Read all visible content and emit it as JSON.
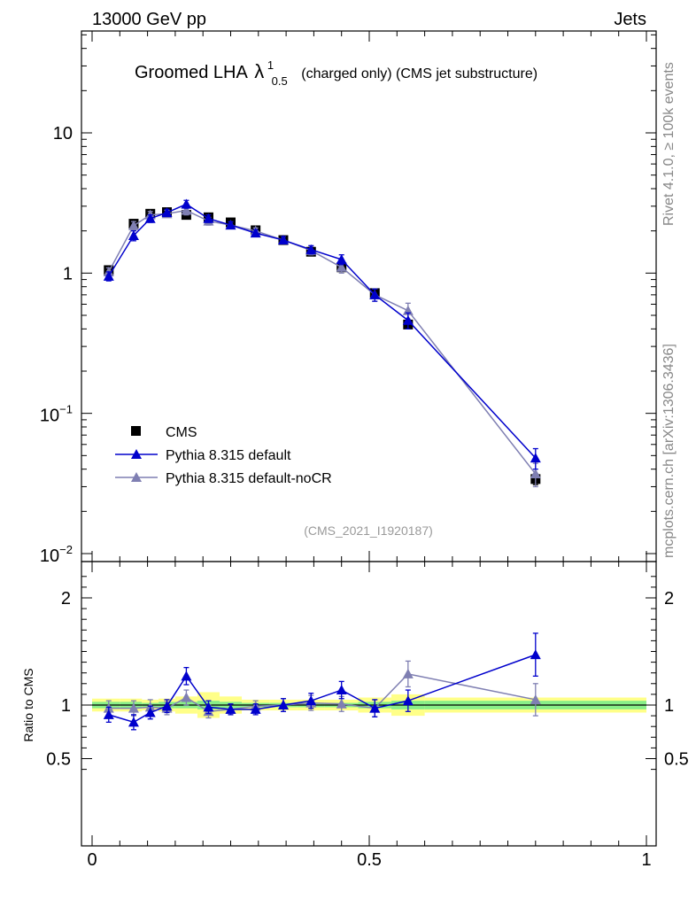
{
  "header": {
    "energy": "13000 GeV pp",
    "category": "Jets"
  },
  "title": {
    "main": "Groomed LHA",
    "lambda": "λ",
    "sup": "1",
    "sub": "0.5",
    "suffix": "(charged only) (CMS jet substructure)"
  },
  "side": {
    "rivet": "Rivet 4.1.0, ≥ 100k events",
    "mcplots": "mcplots.cern.ch [arXiv:1306.3436]"
  },
  "analysis_id": "(CMS_2021_I1920187)",
  "colors": {
    "cms": "#000000",
    "default": "#0000cc",
    "nocr": "#7f7fb2",
    "band_stat": "#88ee88",
    "band_tot": "#ffff88"
  },
  "chart_data": [
    {
      "type": "line",
      "yscale": "log",
      "xlim": [
        0,
        1
      ],
      "ylim": [
        0.01,
        60
      ],
      "yticks": [
        {
          "value": 10,
          "label": "10"
        },
        {
          "value": 1,
          "label": "1"
        },
        {
          "value": 0.1,
          "label": "10",
          "exp": "−1"
        },
        {
          "value": 0.01,
          "label": "10",
          "exp": "−2"
        }
      ],
      "legend": [
        "CMS",
        "Pythia 8.315 default",
        "Pythia 8.315 default-noCR"
      ],
      "series": [
        {
          "name": "CMS",
          "marker": "square",
          "x": [
            0.03,
            0.075,
            0.105,
            0.135,
            0.17,
            0.21,
            0.25,
            0.295,
            0.345,
            0.395,
            0.45,
            0.51,
            0.57,
            0.8
          ],
          "y": [
            1.05,
            2.25,
            2.65,
            2.72,
            2.6,
            2.5,
            2.3,
            2.02,
            1.72,
            1.42,
            1.1,
            0.72,
            0.43,
            0.034
          ],
          "err": [
            0.05,
            0.1,
            0.1,
            0.1,
            0.1,
            0.1,
            0.08,
            0.07,
            0.06,
            0.05,
            0.04,
            0.03,
            0.03,
            0.003
          ]
        },
        {
          "name": "Pythia 8.315 default",
          "marker": "triangle",
          "x": [
            0.03,
            0.075,
            0.105,
            0.135,
            0.17,
            0.21,
            0.25,
            0.295,
            0.345,
            0.395,
            0.45,
            0.51,
            0.57,
            0.8
          ],
          "y": [
            0.95,
            1.85,
            2.45,
            2.7,
            3.1,
            2.45,
            2.2,
            1.93,
            1.72,
            1.47,
            1.25,
            0.7,
            0.46,
            0.048
          ],
          "err": [
            0.07,
            0.15,
            0.15,
            0.15,
            0.2,
            0.15,
            0.12,
            0.1,
            0.1,
            0.1,
            0.1,
            0.07,
            0.06,
            0.008
          ]
        },
        {
          "name": "Pythia 8.315 default-noCR",
          "marker": "triangle",
          "x": [
            0.03,
            0.075,
            0.105,
            0.135,
            0.17,
            0.21,
            0.25,
            0.295,
            0.345,
            0.395,
            0.45,
            0.51,
            0.57,
            0.8
          ],
          "y": [
            1.02,
            2.18,
            2.6,
            2.65,
            2.8,
            2.35,
            2.2,
            2.0,
            1.72,
            1.45,
            1.1,
            0.7,
            0.54,
            0.037
          ],
          "err": [
            0.07,
            0.15,
            0.15,
            0.15,
            0.2,
            0.15,
            0.12,
            0.1,
            0.1,
            0.1,
            0.1,
            0.07,
            0.07,
            0.007
          ]
        }
      ]
    },
    {
      "type": "line",
      "yscale": "linear",
      "ylabel": "Ratio to CMS",
      "xlim": [
        0,
        1
      ],
      "ylim": [
        0.3,
        2.3
      ],
      "yticks": [
        {
          "value": 2,
          "label": "2"
        },
        {
          "value": 1,
          "label": "1"
        },
        {
          "value": 0.5,
          "label": "0.5"
        }
      ],
      "xticks": [
        {
          "value": 0,
          "label": "0"
        },
        {
          "value": 0.5,
          "label": "0.5"
        },
        {
          "value": 1,
          "label": "1"
        }
      ],
      "bands": [
        {
          "x0": 0,
          "x1": 0.05,
          "stat": 0.03,
          "tot": 0.06
        },
        {
          "x0": 0.05,
          "x1": 0.09,
          "stat": 0.03,
          "tot": 0.06
        },
        {
          "x0": 0.09,
          "x1": 0.12,
          "stat": 0.02,
          "tot": 0.05
        },
        {
          "x0": 0.12,
          "x1": 0.15,
          "stat": 0.03,
          "tot": 0.06
        },
        {
          "x0": 0.15,
          "x1": 0.19,
          "stat": 0.03,
          "tot": 0.08
        },
        {
          "x0": 0.19,
          "x1": 0.23,
          "stat": 0.04,
          "tot": 0.12
        },
        {
          "x0": 0.23,
          "x1": 0.27,
          "stat": 0.03,
          "tot": 0.08
        },
        {
          "x0": 0.27,
          "x1": 0.32,
          "stat": 0.02,
          "tot": 0.05
        },
        {
          "x0": 0.32,
          "x1": 0.37,
          "stat": 0.02,
          "tot": 0.05
        },
        {
          "x0": 0.37,
          "x1": 0.42,
          "stat": 0.02,
          "tot": 0.05
        },
        {
          "x0": 0.42,
          "x1": 0.48,
          "stat": 0.02,
          "tot": 0.05
        },
        {
          "x0": 0.48,
          "x1": 0.54,
          "stat": 0.03,
          "tot": 0.07
        },
        {
          "x0": 0.54,
          "x1": 0.6,
          "stat": 0.04,
          "tot": 0.1
        },
        {
          "x0": 0.6,
          "x1": 1.0,
          "stat": 0.04,
          "tot": 0.07
        }
      ],
      "series": [
        {
          "name": "Pythia 8.315 default",
          "x": [
            0.03,
            0.075,
            0.105,
            0.135,
            0.17,
            0.21,
            0.25,
            0.295,
            0.345,
            0.395,
            0.45,
            0.51,
            0.57,
            0.8
          ],
          "y": [
            0.91,
            0.84,
            0.93,
            0.99,
            1.27,
            0.98,
            0.96,
            0.96,
            1.0,
            1.04,
            1.14,
            0.97,
            1.04,
            1.47
          ],
          "err": [
            0.07,
            0.07,
            0.06,
            0.06,
            0.08,
            0.06,
            0.05,
            0.05,
            0.06,
            0.07,
            0.08,
            0.08,
            0.1,
            0.2
          ]
        },
        {
          "name": "Pythia 8.315 default-noCR",
          "x": [
            0.03,
            0.075,
            0.105,
            0.135,
            0.17,
            0.21,
            0.25,
            0.295,
            0.345,
            0.395,
            0.45,
            0.51,
            0.57,
            0.8
          ],
          "y": [
            0.97,
            0.97,
            0.98,
            0.97,
            1.07,
            0.94,
            0.96,
            0.99,
            1.0,
            1.02,
            1.01,
            0.97,
            1.29,
            1.05
          ],
          "err": [
            0.07,
            0.07,
            0.07,
            0.06,
            0.07,
            0.06,
            0.05,
            0.05,
            0.06,
            0.07,
            0.07,
            0.08,
            0.12,
            0.15
          ]
        }
      ]
    }
  ]
}
